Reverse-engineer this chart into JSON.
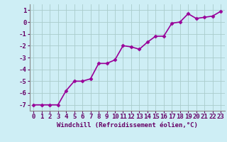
{
  "x": [
    0,
    1,
    2,
    3,
    4,
    5,
    6,
    7,
    8,
    9,
    10,
    11,
    12,
    13,
    14,
    15,
    16,
    17,
    18,
    19,
    20,
    21,
    22,
    23
  ],
  "y": [
    -7.0,
    -7.0,
    -7.0,
    -7.0,
    -5.8,
    -5.0,
    -5.0,
    -4.8,
    -3.5,
    -3.5,
    -3.2,
    -2.0,
    -2.1,
    -2.3,
    -1.7,
    -1.2,
    -1.2,
    -0.1,
    0.0,
    0.7,
    0.3,
    0.4,
    0.5,
    0.9
  ],
  "line_color": "#990099",
  "marker": "D",
  "marker_size": 2.5,
  "background_color": "#ceeef5",
  "grid_color": "#aacccc",
  "xlabel": "Windchill (Refroidissement éolien,°C)",
  "xlim": [
    -0.5,
    23.5
  ],
  "ylim": [
    -7.5,
    1.5
  ],
  "yticks": [
    1,
    0,
    -1,
    -2,
    -3,
    -4,
    -5,
    -6,
    -7
  ],
  "xticks": [
    0,
    1,
    2,
    3,
    4,
    5,
    6,
    7,
    8,
    9,
    10,
    11,
    12,
    13,
    14,
    15,
    16,
    17,
    18,
    19,
    20,
    21,
    22,
    23
  ],
  "xlabel_fontsize": 6.5,
  "tick_fontsize": 6.5,
  "line_width": 1.2,
  "spine_color": "#888888",
  "tick_color": "#660066",
  "label_color": "#660066"
}
